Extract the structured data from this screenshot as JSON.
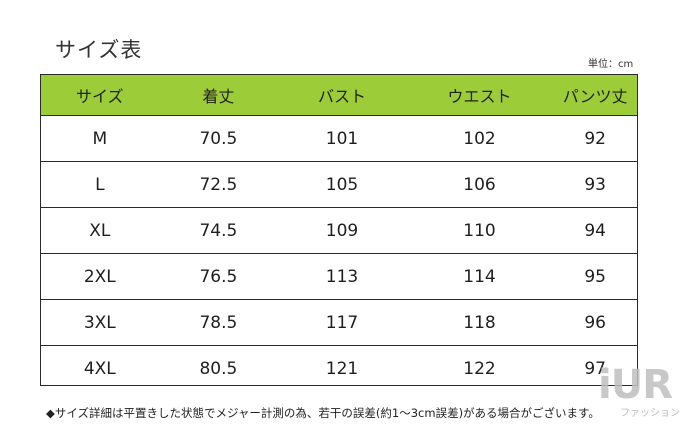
{
  "title": "サイズ表",
  "unit_label": "単位：cm",
  "table": {
    "headers": [
      "サイズ",
      "着丈",
      "バスト",
      "ウエスト",
      "パンツ丈"
    ],
    "rows": [
      [
        "M",
        "70.5",
        "101",
        "102",
        "92"
      ],
      [
        "L",
        "72.5",
        "105",
        "106",
        "93"
      ],
      [
        "XL",
        "74.5",
        "109",
        "110",
        "94"
      ],
      [
        "2XL",
        "76.5",
        "113",
        "114",
        "95"
      ],
      [
        "3XL",
        "78.5",
        "117",
        "118",
        "96"
      ],
      [
        "4XL",
        "80.5",
        "121",
        "122",
        "97"
      ]
    ]
  },
  "note": "◆サイズ詳細は平置きした状態でメジャー計測の為、若干の誤差(約1〜3cm誤差)がある場合がございます。",
  "watermark": "iUR",
  "watermark_sub": "ファッション",
  "colors": {
    "header_bg": "#9ccc38",
    "border": "#2a2a2a"
  }
}
